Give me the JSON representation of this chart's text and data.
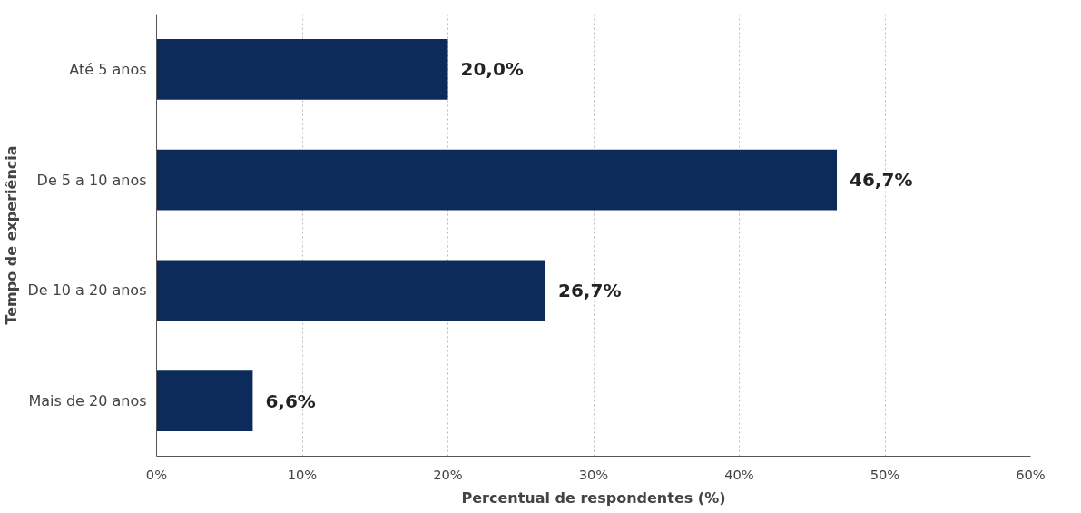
{
  "chart_data": {
    "type": "bar",
    "orientation": "horizontal",
    "xlabel": "Percentual de respondentes (%)",
    "ylabel": "Tempo de experiência",
    "categories": [
      "Até 5 anos",
      "De 5 a 10 anos",
      "De 10 a 20 anos",
      "Mais de 20 anos"
    ],
    "values": [
      20.0,
      46.7,
      26.7,
      6.6
    ],
    "value_labels": [
      "20,0%",
      "46,7%",
      "26,7%",
      "6,6%"
    ],
    "color": "#0c2b5b",
    "xlim": [
      0,
      60
    ],
    "xticks": [
      {
        "value": 0,
        "label": "0%"
      },
      {
        "value": 10,
        "label": "10%"
      },
      {
        "value": 20,
        "label": "20%"
      },
      {
        "value": 30,
        "label": "30%"
      },
      {
        "value": 40,
        "label": "40%"
      },
      {
        "value": 50,
        "label": "50%"
      },
      {
        "value": 60,
        "label": "60%"
      }
    ],
    "grid": "x"
  }
}
